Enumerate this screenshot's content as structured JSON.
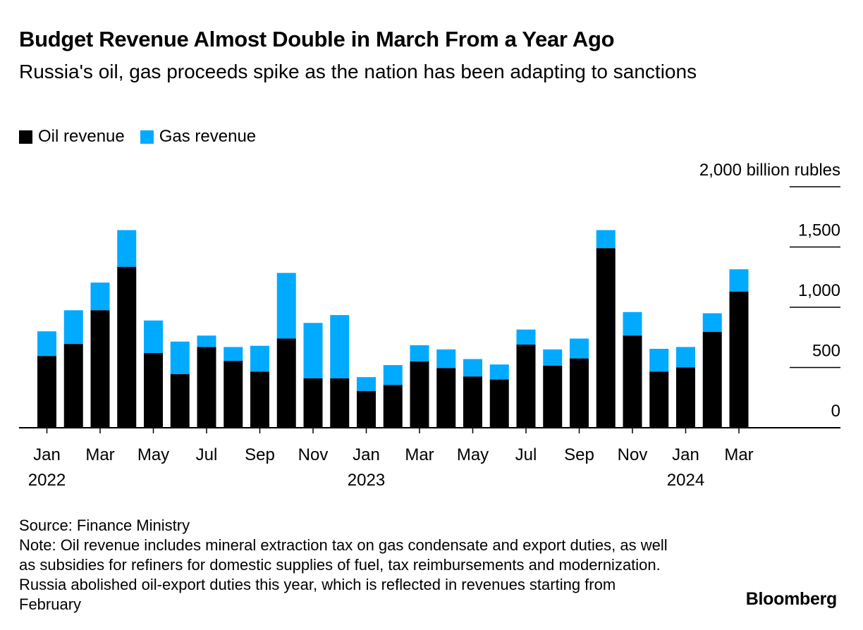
{
  "header": {
    "title": "Budget Revenue Almost Double in March From a Year Ago",
    "subtitle": "Russia's oil, gas proceeds spike as the nation has been adapting to sanctions"
  },
  "legend": [
    {
      "label": "Oil revenue",
      "color": "#000000"
    },
    {
      "label": "Gas revenue",
      "color": "#00aaff"
    }
  ],
  "footer": {
    "source": "Source: Finance Ministry",
    "note": "Note: Oil revenue includes mineral extraction tax on gas condensate and export duties, as well as subsidies for refiners for domestic supplies of fuel, tax reimbursements and modernization. Russia abolished oil-export duties this year, which is reflected in revenues starting from February"
  },
  "brand": "Bloomberg",
  "chart_data": {
    "type": "bar",
    "stacked": true,
    "title": "Budget Revenue Almost Double in March From a Year Ago",
    "unit_label": "2,000 billion rubles",
    "ylim": [
      0,
      2000
    ],
    "yticks": [
      {
        "value": 0,
        "label": "0"
      },
      {
        "value": 500,
        "label": "500"
      },
      {
        "value": 1000,
        "label": "1,000"
      },
      {
        "value": 1500,
        "label": "1,500"
      }
    ],
    "x_tick_labels": [
      {
        "index": 0,
        "month": "Jan",
        "year": "2022"
      },
      {
        "index": 2,
        "month": "Mar"
      },
      {
        "index": 4,
        "month": "May"
      },
      {
        "index": 6,
        "month": "Jul"
      },
      {
        "index": 8,
        "month": "Sep"
      },
      {
        "index": 10,
        "month": "Nov"
      },
      {
        "index": 12,
        "month": "Jan",
        "year": "2023"
      },
      {
        "index": 14,
        "month": "Mar"
      },
      {
        "index": 16,
        "month": "May"
      },
      {
        "index": 18,
        "month": "Jul"
      },
      {
        "index": 20,
        "month": "Sep"
      },
      {
        "index": 22,
        "month": "Nov"
      },
      {
        "index": 24,
        "month": "Jan",
        "year": "2024"
      },
      {
        "index": 26,
        "month": "Mar"
      }
    ],
    "categories": [
      "Jan 2022",
      "Feb 2022",
      "Mar 2022",
      "Apr 2022",
      "May 2022",
      "Jun 2022",
      "Jul 2022",
      "Aug 2022",
      "Sep 2022",
      "Oct 2022",
      "Nov 2022",
      "Dec 2022",
      "Jan 2023",
      "Feb 2023",
      "Mar 2023",
      "Apr 2023",
      "May 2023",
      "Jun 2023",
      "Jul 2023",
      "Aug 2023",
      "Sep 2023",
      "Oct 2023",
      "Nov 2023",
      "Dec 2023",
      "Jan 2024",
      "Feb 2024",
      "Mar 2024"
    ],
    "series": [
      {
        "name": "Oil revenue",
        "color": "#000000",
        "values": [
          595,
          695,
          975,
          1335,
          620,
          445,
          670,
          555,
          465,
          740,
          410,
          410,
          305,
          355,
          550,
          495,
          425,
          400,
          690,
          515,
          575,
          1490,
          765,
          465,
          500,
          795,
          1130
        ]
      },
      {
        "name": "Gas revenue",
        "color": "#00aaff",
        "values": [
          205,
          280,
          230,
          305,
          270,
          270,
          95,
          115,
          215,
          545,
          460,
          525,
          115,
          165,
          135,
          155,
          145,
          125,
          125,
          135,
          165,
          150,
          195,
          190,
          170,
          155,
          185
        ]
      }
    ]
  }
}
